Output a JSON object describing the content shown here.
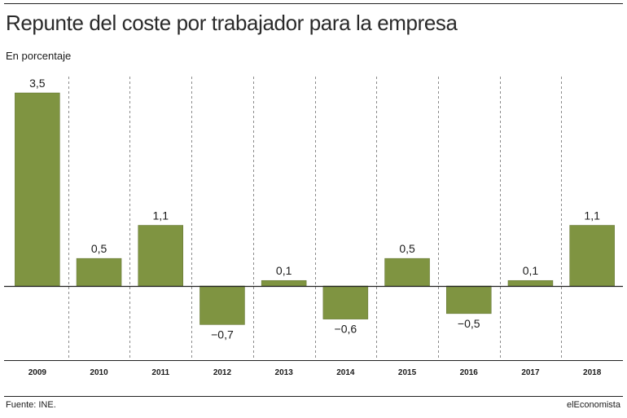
{
  "header": {
    "title": "Repunte del coste por trabajador para la empresa",
    "subtitle": "En porcentaje"
  },
  "footer": {
    "source": "Fuente: INE.",
    "brand": "elEconomista"
  },
  "colors": {
    "bar": "#7f9441",
    "bar_stroke": "#5f7130",
    "grid": "#8a8a8a",
    "axis": "#222222",
    "text": "#1a1a1a"
  },
  "chart_data": {
    "type": "bar",
    "title": "Repunte del coste por trabajador para la empresa",
    "subtitle": "En porcentaje",
    "categories": [
      "2009",
      "2010",
      "2011",
      "2012",
      "2013",
      "2014",
      "2015",
      "2016",
      "2017",
      "2018"
    ],
    "values": [
      3.5,
      0.5,
      1.1,
      -0.7,
      0.1,
      -0.6,
      0.5,
      -0.5,
      0.1,
      1.1
    ],
    "value_labels": [
      "3,5",
      "0,5",
      "1,1",
      "−0,7",
      "0,1",
      "−0,6",
      "0,5",
      "−0,5",
      "0,1",
      "1,1"
    ],
    "xlabel": "",
    "ylabel": "",
    "ylim": [
      -1.35,
      3.85
    ],
    "grid": "vertical dashed separators between categories",
    "legend": "none"
  }
}
